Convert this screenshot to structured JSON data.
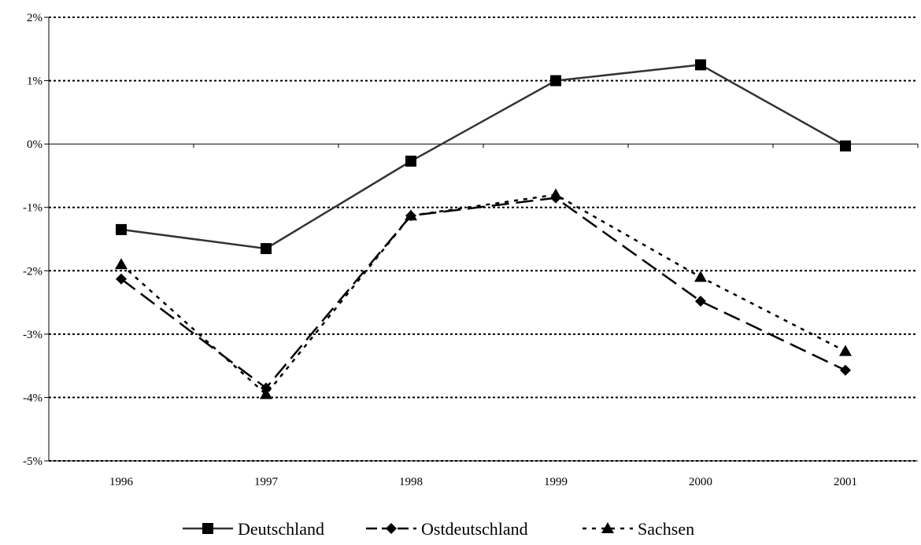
{
  "chart_data": {
    "type": "line",
    "title": "",
    "xlabel": "",
    "ylabel": "",
    "categories": [
      "1996",
      "1997",
      "1998",
      "1999",
      "2000",
      "2001"
    ],
    "ylim": [
      -5,
      2
    ],
    "y_ticks": [
      2,
      1,
      0,
      -1,
      -2,
      -3,
      -4,
      -5
    ],
    "y_tick_labels": [
      "2%",
      "1%",
      "0%",
      "-1%",
      "-2%",
      "-3%",
      "-4%",
      "-5%"
    ],
    "grid": "horizontal dotted",
    "legend_position": "bottom",
    "series": [
      {
        "name": "Deutschland",
        "values": [
          -1.35,
          -1.65,
          -0.27,
          1.0,
          1.25,
          -0.03
        ],
        "marker": "square",
        "line": "solid",
        "color": "#333333"
      },
      {
        "name": "Ostdeutschland",
        "values": [
          -2.13,
          -3.85,
          -1.13,
          -0.85,
          -2.48,
          -3.57
        ],
        "marker": "diamond",
        "line": "dashed",
        "color": "#000000"
      },
      {
        "name": "Sachsen",
        "values": [
          -1.9,
          -3.95,
          -1.13,
          -0.8,
          -2.1,
          -3.27
        ],
        "marker": "triangle",
        "line": "dotted",
        "color": "#000000"
      }
    ]
  }
}
